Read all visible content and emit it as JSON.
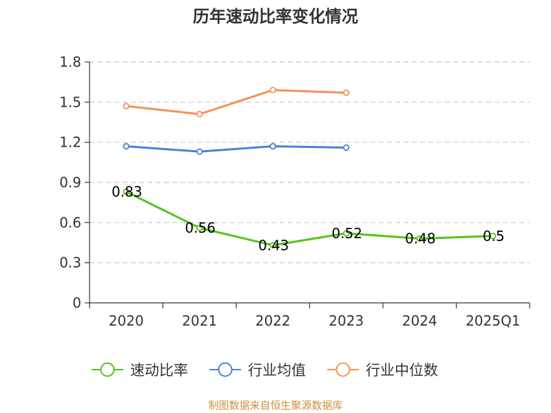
{
  "chart_data": {
    "type": "line",
    "title": "历年速动比率变化情况",
    "categories": [
      "2020",
      "2021",
      "2022",
      "2023",
      "2024",
      "2025Q1"
    ],
    "ylim": [
      0,
      1.8
    ],
    "yticks": [
      "0",
      "0.3",
      "0.6",
      "0.9",
      "1.2",
      "1.5",
      "1.8"
    ],
    "ytick_values": [
      0,
      0.3,
      0.6,
      0.9,
      1.2,
      1.5,
      1.8
    ],
    "grid": true,
    "legend_position": "bottom",
    "series": [
      {
        "name": "速动比率",
        "color": "#52c41a",
        "values": [
          0.83,
          0.56,
          0.43,
          0.52,
          0.48,
          0.5
        ],
        "labels": [
          "0.83",
          "0.56",
          "0.43",
          "0.52",
          "0.48",
          "0.5"
        ]
      },
      {
        "name": "行业均值",
        "color": "#4a7fd9",
        "values": [
          1.17,
          1.13,
          1.17,
          1.16,
          null,
          null
        ]
      },
      {
        "name": "行业中位数",
        "color": "#f5915a",
        "values": [
          1.47,
          1.41,
          1.59,
          1.57,
          null,
          null
        ]
      }
    ],
    "source": "制图数据来自恒生聚源数据库",
    "source_color": "#c9913d"
  }
}
